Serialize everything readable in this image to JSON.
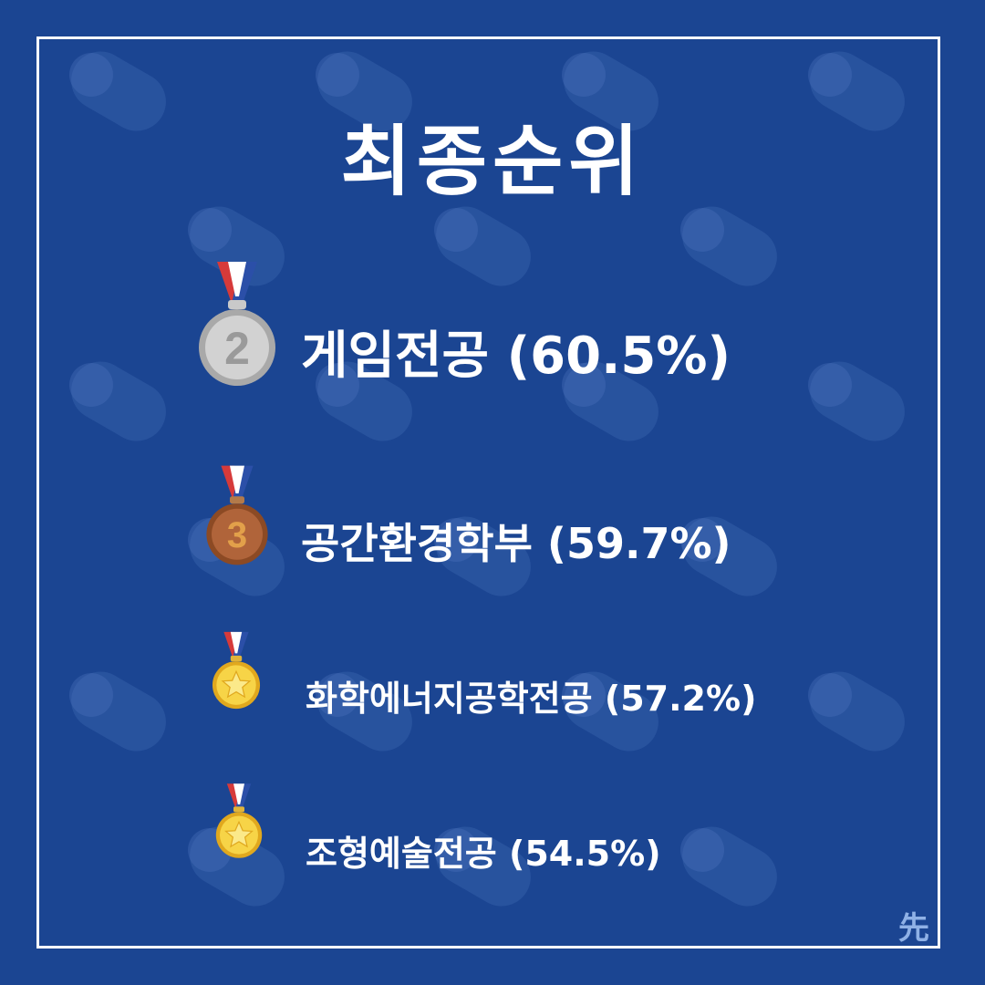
{
  "title": "최종순위",
  "colors": {
    "background": "#1b4592",
    "frame": "#ffffff",
    "text": "#ffffff"
  },
  "rankings": [
    {
      "medal": "second-place-medal-icon",
      "medal_number": "2",
      "label": "게임전공 (60.5%)",
      "percent": 60.5
    },
    {
      "medal": "third-place-medal-icon",
      "medal_number": "3",
      "label": "공간환경학부 (59.7%)",
      "percent": 59.7
    },
    {
      "medal": "gold-star-medal-icon",
      "label": "화학에너지공학전공 (57.2%)",
      "percent": 57.2
    },
    {
      "medal": "gold-star-medal-icon",
      "label": "조형예술전공 (54.5%)",
      "percent": 54.5
    }
  ],
  "corner_logo": "先"
}
